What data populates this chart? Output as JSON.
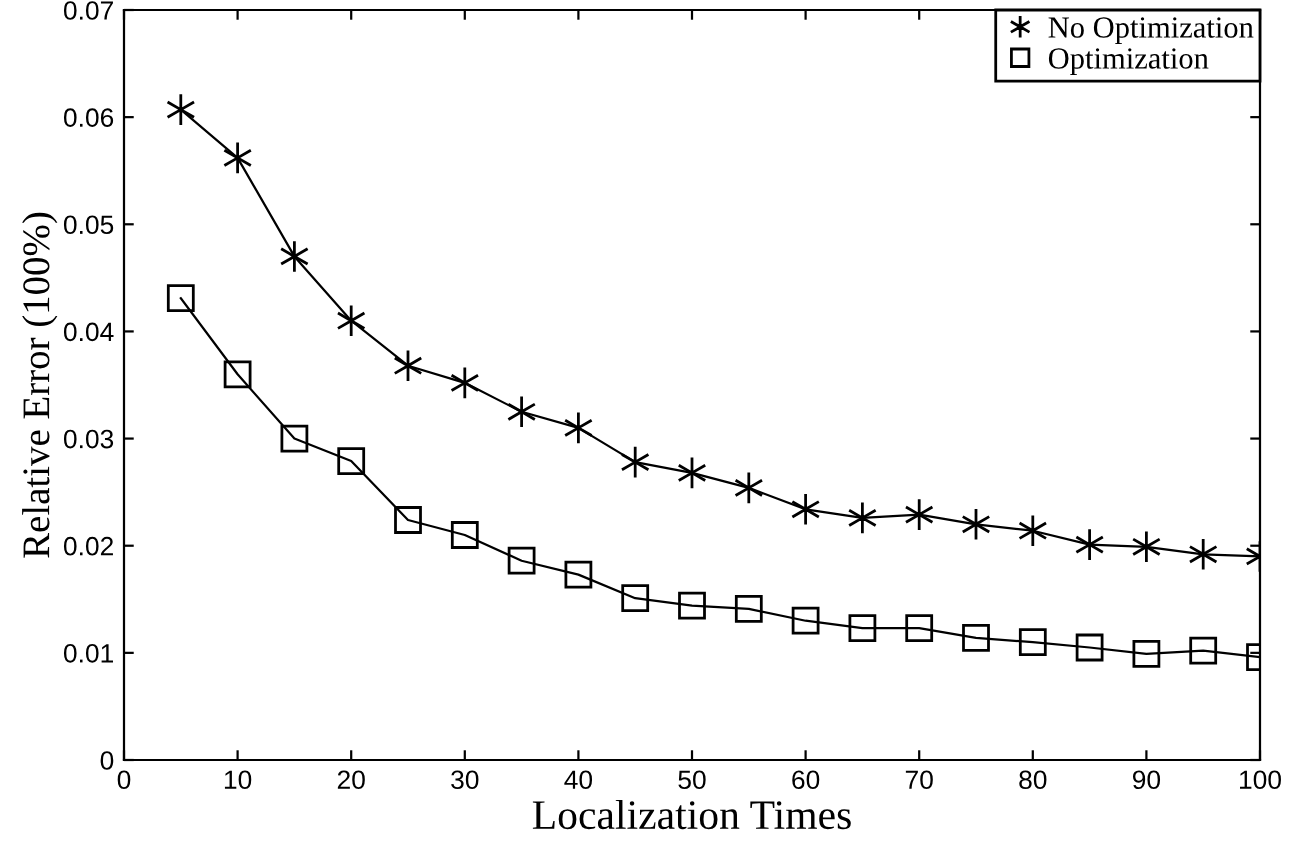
{
  "chart_data": {
    "type": "line",
    "xlabel": "Localization Times",
    "ylabel": "Relative Error (100%)",
    "x": [
      5,
      10,
      15,
      20,
      25,
      30,
      35,
      40,
      45,
      50,
      55,
      60,
      65,
      70,
      75,
      80,
      85,
      90,
      95,
      100
    ],
    "series": [
      {
        "name": "No Optimization",
        "color": "#000000",
        "marker": "cross",
        "values": [
          0.0607,
          0.0562,
          0.047,
          0.041,
          0.0368,
          0.0352,
          0.0325,
          0.031,
          0.0278,
          0.0268,
          0.0254,
          0.0234,
          0.0226,
          0.0229,
          0.022,
          0.0214,
          0.0201,
          0.0199,
          0.0192,
          0.019
        ]
      },
      {
        "name": "Optimization",
        "color": "#000000",
        "marker": "square",
        "values": [
          0.0431,
          0.036,
          0.03,
          0.0279,
          0.0224,
          0.021,
          0.0186,
          0.0173,
          0.0151,
          0.0144,
          0.0141,
          0.013,
          0.0123,
          0.0123,
          0.0114,
          0.011,
          0.0105,
          0.0099,
          0.0102,
          0.0096
        ]
      }
    ],
    "xlim": [
      0,
      100
    ],
    "xticks": [
      0,
      10,
      20,
      30,
      40,
      50,
      60,
      70,
      80,
      90,
      100
    ],
    "ylim": [
      0,
      0.07
    ],
    "yticks": [
      0,
      0.01,
      0.02,
      0.03,
      0.04,
      0.05,
      0.06,
      0.07
    ],
    "grid": false,
    "legend": "top right",
    "line_style": "solid"
  }
}
